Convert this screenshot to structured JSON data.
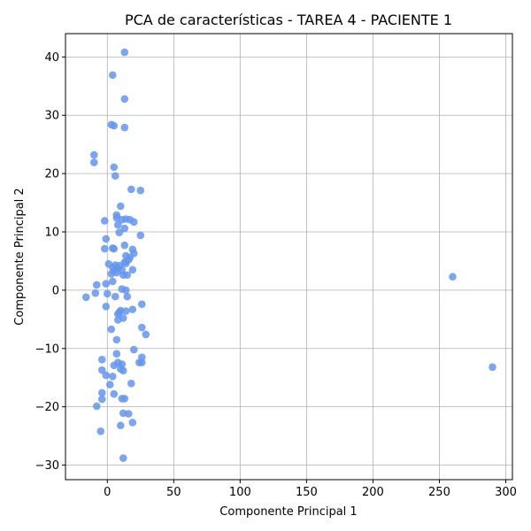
{
  "chart_data": {
    "type": "scatter",
    "title": "PCA de características - TAREA 4 - PACIENTE 1",
    "xlabel": "Componente Principal 1",
    "ylabel": "Componente Principal 2",
    "xlim": [
      -31.5,
      305
    ],
    "ylim": [
      -32.5,
      44
    ],
    "xticks": [
      0,
      50,
      100,
      150,
      200,
      250,
      300
    ],
    "xtick_labels": [
      "0",
      "50",
      "100",
      "150",
      "200",
      "250",
      "300"
    ],
    "yticks": [
      -30,
      -20,
      -10,
      0,
      10,
      20,
      30,
      40
    ],
    "ytick_labels": [
      "−30",
      "−20",
      "−10",
      "0",
      "10",
      "20",
      "30",
      "40"
    ],
    "grid": true,
    "marker_color": "#6495ED",
    "points": [
      [
        13,
        40.8
      ],
      [
        4,
        36.9
      ],
      [
        13,
        32.8
      ],
      [
        3,
        28.4
      ],
      [
        5,
        28.2
      ],
      [
        13,
        27.9
      ],
      [
        -10,
        23.2
      ],
      [
        -10,
        21.9
      ],
      [
        5,
        21.1
      ],
      [
        6,
        19.6
      ],
      [
        18,
        17.3
      ],
      [
        25,
        17.1
      ],
      [
        10,
        14.4
      ],
      [
        7,
        12.9
      ],
      [
        7,
        12.4
      ],
      [
        11,
        12.1
      ],
      [
        14,
        12.2
      ],
      [
        17,
        12.1
      ],
      [
        20,
        11.7
      ],
      [
        -2,
        11.9
      ],
      [
        8,
        11.2
      ],
      [
        13,
        10.6
      ],
      [
        9,
        9.9
      ],
      [
        25,
        9.4
      ],
      [
        -1,
        8.8
      ],
      [
        13,
        7.7
      ],
      [
        4,
        7.2
      ],
      [
        5,
        7.1
      ],
      [
        -2,
        7.1
      ],
      [
        19,
        7.0
      ],
      [
        20,
        6.3
      ],
      [
        14,
        5.9
      ],
      [
        17,
        5.6
      ],
      [
        16,
        5.2
      ],
      [
        13,
        4.8
      ],
      [
        14,
        4.6
      ],
      [
        1,
        4.5
      ],
      [
        6,
        4.3
      ],
      [
        9,
        4.2
      ],
      [
        4,
        3.9
      ],
      [
        8,
        3.7
      ],
      [
        5,
        3.3
      ],
      [
        11,
        3.5
      ],
      [
        19,
        3.5
      ],
      [
        7,
        3.0
      ],
      [
        3,
        2.8
      ],
      [
        12,
        2.6
      ],
      [
        15,
        2.6
      ],
      [
        4,
        1.5
      ],
      [
        -1,
        1.1
      ],
      [
        -8,
        0.9
      ],
      [
        11,
        0.2
      ],
      [
        14,
        0.0
      ],
      [
        -9,
        -0.5
      ],
      [
        0,
        -0.6
      ],
      [
        -16,
        -1.2
      ],
      [
        6,
        -1.1
      ],
      [
        15,
        -1.1
      ],
      [
        26,
        -2.4
      ],
      [
        -1,
        -2.8
      ],
      [
        10,
        -3.5
      ],
      [
        14,
        -3.6
      ],
      [
        9,
        -3.8
      ],
      [
        19,
        -3.3
      ],
      [
        8,
        -4.1
      ],
      [
        12,
        -4.8
      ],
      [
        8,
        -5.1
      ],
      [
        26,
        -6.4
      ],
      [
        3,
        -6.7
      ],
      [
        29,
        -7.6
      ],
      [
        7,
        -8.5
      ],
      [
        20,
        -10.2
      ],
      [
        7,
        -10.9
      ],
      [
        26,
        -11.5
      ],
      [
        -4,
        -11.9
      ],
      [
        8,
        -12.4
      ],
      [
        24,
        -12.4
      ],
      [
        26,
        -12.4
      ],
      [
        11,
        -12.7
      ],
      [
        5,
        -12.9
      ],
      [
        10,
        -13.5
      ],
      [
        12,
        -13.8
      ],
      [
        -4,
        -13.7
      ],
      [
        -1,
        -14.6
      ],
      [
        4,
        -14.8
      ],
      [
        2,
        -16.2
      ],
      [
        18,
        -16.0
      ],
      [
        -4,
        -17.6
      ],
      [
        5,
        -17.8
      ],
      [
        -4,
        -18.7
      ],
      [
        11,
        -18.6
      ],
      [
        13,
        -18.6
      ],
      [
        -8,
        -19.9
      ],
      [
        12,
        -21.1
      ],
      [
        16,
        -21.2
      ],
      [
        19,
        -22.7
      ],
      [
        10,
        -23.2
      ],
      [
        -5,
        -24.2
      ],
      [
        12,
        -28.8
      ],
      [
        260,
        2.3
      ],
      [
        290,
        -13.2
      ]
    ]
  }
}
